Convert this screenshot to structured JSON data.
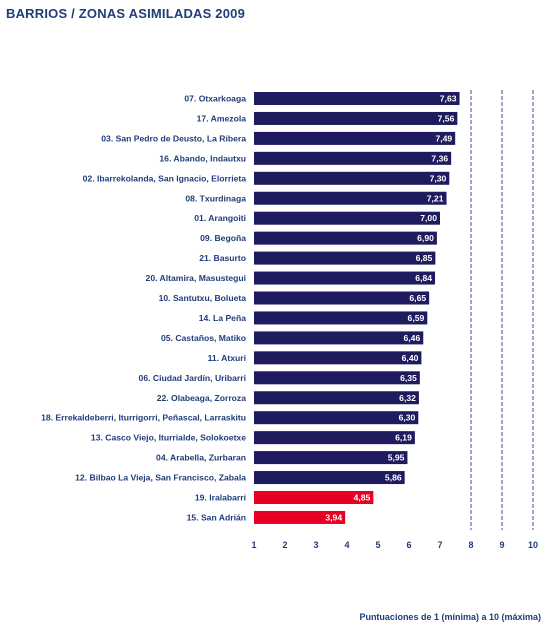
{
  "title": "BARRIOS / ZONAS ASIMILADAS 2009",
  "footnote": "Puntuaciones de 1 (mínima) a 10 (máxima)",
  "colors": {
    "normal": "#1e1b5e",
    "highlight": "#e60023",
    "grid": "#3a4fa0",
    "text": "#1f3d7a"
  },
  "chart_data": {
    "type": "bar",
    "orientation": "horizontal",
    "title": "BARRIOS / ZONAS ASIMILADAS 2009",
    "xlim": [
      1,
      10
    ],
    "xticks": [
      "1",
      "2",
      "3",
      "4",
      "5",
      "6",
      "7",
      "8",
      "9",
      "10"
    ],
    "grid": "dashed vertical lines at 8, 9, 10",
    "categories": [
      "07. Otxarkoaga",
      "17. Amezola",
      "03. San Pedro de Deusto, La Ribera",
      "16. Abando, Indautxu",
      "02. Ibarrekolanda, San Ignacio, Elorrieta",
      "08. Txurdinaga",
      "01. Arangoiti",
      "09. Begoña",
      "21. Basurto",
      "20. Altamira, Masustegui",
      "10. Santutxu, Bolueta",
      "14. La Peña",
      "05. Castaños, Matiko",
      "11. Atxuri",
      "06. Ciudad Jardín, Uribarri",
      "22. Olabeaga, Zorroza",
      "18. Errekaldeberri, Iturrigorri, Peñascal, Larraskitu",
      "13. Casco Viejo, Iturrialde, Solokoetxe",
      "04. Arabella, Zurbaran",
      "12. Bilbao La Vieja, San Francisco, Zabala",
      "19. Iralabarri",
      "15. San Adrián"
    ],
    "values": [
      7.63,
      7.56,
      7.49,
      7.36,
      7.3,
      7.21,
      7.0,
      6.9,
      6.85,
      6.84,
      6.65,
      6.59,
      6.46,
      6.4,
      6.35,
      6.32,
      6.3,
      6.19,
      5.95,
      5.86,
      4.85,
      3.94
    ],
    "labels": [
      "7,63",
      "7,56",
      "7,49",
      "7,36",
      "7,30",
      "7,21",
      "7,00",
      "6,90",
      "6,85",
      "6,84",
      "6,65",
      "6,59",
      "6,46",
      "6,40",
      "6,35",
      "6,32",
      "6,30",
      "6,19",
      "5,95",
      "5,86",
      "4,85",
      "3,94"
    ],
    "highlighted": [
      "19. Iralabarri",
      "15. San Adrián"
    ]
  }
}
